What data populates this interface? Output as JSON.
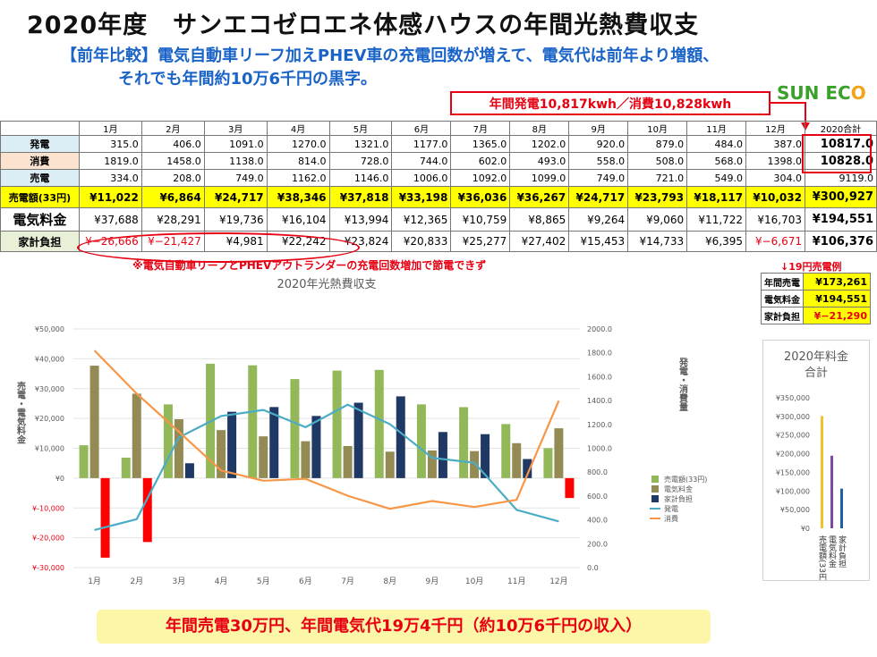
{
  "title": "2020年度　サンエコゼロエネ体感ハウスの年間光熱費収支",
  "subtitle_line1": "【前年比較】電気自動車リーフ加えPHEV車の充電回数が増えて、電気代は前年より増額、",
  "subtitle_line2": "それでも年間約10万6千円の黒字。",
  "callout": "年間発電10,817kwh／消費10,828kwh",
  "logo": {
    "part1": "SUN EC",
    "part2": "O"
  },
  "table": {
    "headers": [
      "1月",
      "2月",
      "3月",
      "4月",
      "5月",
      "6月",
      "7月",
      "8月",
      "9月",
      "10月",
      "11月",
      "12月",
      "2020合計"
    ],
    "rows": [
      {
        "label": "発電",
        "values": [
          "315.0",
          "406.0",
          "1091.0",
          "1270.0",
          "1321.0",
          "1177.0",
          "1365.0",
          "1202.0",
          "920.0",
          "879.0",
          "484.0",
          "387.0",
          "10817.0"
        ]
      },
      {
        "label": "消費",
        "values": [
          "1819.0",
          "1458.0",
          "1138.0",
          "814.0",
          "728.0",
          "744.0",
          "602.0",
          "493.0",
          "558.0",
          "508.0",
          "568.0",
          "1398.0",
          "10828.0"
        ]
      },
      {
        "label": "売電",
        "values": [
          "334.0",
          "208.0",
          "749.0",
          "1162.0",
          "1146.0",
          "1006.0",
          "1092.0",
          "1099.0",
          "749.0",
          "721.0",
          "549.0",
          "304.0",
          "9119.0"
        ]
      },
      {
        "label": "売電額(33円)",
        "values": [
          "¥11,022",
          "¥6,864",
          "¥24,717",
          "¥38,346",
          "¥37,818",
          "¥33,198",
          "¥36,036",
          "¥36,267",
          "¥24,717",
          "¥23,793",
          "¥18,117",
          "¥10,032",
          "¥300,927"
        ]
      },
      {
        "label": "電気料金",
        "values": [
          "¥37,688",
          "¥28,291",
          "¥19,736",
          "¥16,104",
          "¥13,994",
          "¥12,365",
          "¥10,759",
          "¥8,865",
          "¥9,264",
          "¥9,060",
          "¥11,722",
          "¥16,703",
          "¥194,551"
        ]
      },
      {
        "label": "家計負担",
        "values": [
          "¥−26,666",
          "¥−21,427",
          "¥4,981",
          "¥22,242",
          "¥23,824",
          "¥20,833",
          "¥25,277",
          "¥27,402",
          "¥15,453",
          "¥14,733",
          "¥6,395",
          "¥−6,671",
          "¥106,376"
        ]
      }
    ]
  },
  "note": "※電気自動車リーフとPHEVアウトランダーの充電回数増加で節電できず",
  "rate_note": "↓19円売電例",
  "side_table": [
    {
      "label": "年間売電",
      "value": "¥173,261"
    },
    {
      "label": "電気料金",
      "value": "¥194,551"
    },
    {
      "label": "家計負担",
      "value": "¥−21,290"
    }
  ],
  "banner": "年間売電30万円、年間電気代19万4千円（約10万6千円の収入）",
  "colors": {
    "sales": "#93b85a",
    "elec": "#948a54",
    "balance": "#1f3864",
    "balance_negative": "#ff0000",
    "gen": "#4bacc6",
    "use": "#f79646"
  },
  "chart_data": [
    {
      "type": "bar",
      "title": "2020年光熱費収支",
      "categories": [
        "1月",
        "2月",
        "3月",
        "4月",
        "5月",
        "6月",
        "7月",
        "8月",
        "9月",
        "10月",
        "11月",
        "12月"
      ],
      "ylabel": "売電・電気料金",
      "y2label": "発電・消費量",
      "ylim": [
        -30000,
        50000
      ],
      "y2lim": [
        0,
        2000
      ],
      "yticks": [
        "¥50,000",
        "¥40,000",
        "¥30,000",
        "¥20,000",
        "¥10,000",
        "¥0",
        "¥-10,000",
        "¥-20,000",
        "¥-30,000"
      ],
      "y2ticks": [
        "2000.0",
        "1800.0",
        "1600.0",
        "1400.0",
        "1200.0",
        "1000.0",
        "800.0",
        "600.0",
        "400.0",
        "200.0",
        "0.0"
      ],
      "grid": true,
      "legend": "right",
      "series": [
        {
          "name": "売電額(33円)",
          "kind": "bar",
          "axis": "left",
          "values": [
            11022,
            6864,
            24717,
            38346,
            37818,
            33198,
            36036,
            36267,
            24717,
            23793,
            18117,
            10032
          ]
        },
        {
          "name": "電気料金",
          "kind": "bar",
          "axis": "left",
          "values": [
            37688,
            28291,
            19736,
            16104,
            13994,
            12365,
            10759,
            8865,
            9264,
            9060,
            11722,
            16703
          ]
        },
        {
          "name": "家計負担",
          "kind": "bar",
          "axis": "left",
          "values": [
            -26666,
            -21427,
            4981,
            22242,
            23824,
            20833,
            25277,
            27402,
            15453,
            14733,
            6395,
            -6671
          ]
        },
        {
          "name": "発電",
          "kind": "line",
          "axis": "right",
          "values": [
            315,
            406,
            1091,
            1270,
            1321,
            1177,
            1365,
            1202,
            920,
            879,
            484,
            387
          ]
        },
        {
          "name": "消費",
          "kind": "line",
          "axis": "right",
          "values": [
            1819,
            1458,
            1138,
            814,
            728,
            744,
            602,
            493,
            558,
            508,
            568,
            1398
          ]
        }
      ]
    },
    {
      "type": "bar",
      "title_line1": "2020年料金",
      "title_line2": "合計",
      "ylim": [
        0,
        350000
      ],
      "yticks": [
        "¥350,000",
        "¥300,000",
        "¥250,000",
        "¥200,000",
        "¥150,000",
        "¥100,000",
        "¥50,000",
        "¥0"
      ],
      "categories": [
        "売電額(33円)",
        "電気料金",
        "家計負担"
      ],
      "values": [
        300927,
        194551,
        106376
      ]
    }
  ]
}
